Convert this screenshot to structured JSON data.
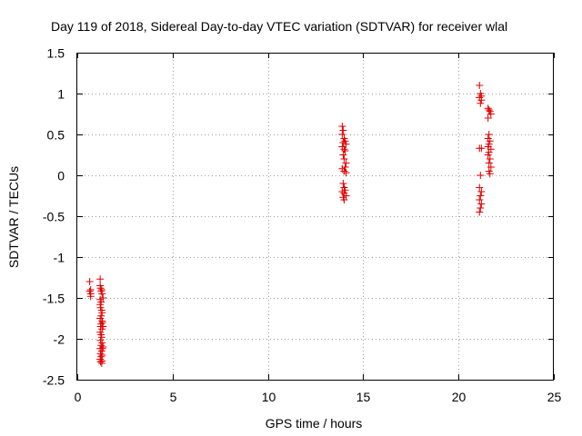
{
  "chart_data": {
    "type": "scatter",
    "title": "Day 119 of 2018, Sidereal Day-to-day VTEC variation (SDTVAR) for receiver wlal",
    "xlabel": "GPS time / hours",
    "ylabel": "SDTVAR / TECUs",
    "xlim": [
      0,
      25
    ],
    "ylim": [
      -2.5,
      1.5
    ],
    "xticks": [
      0,
      5,
      10,
      15,
      20,
      25
    ],
    "xtick_labels": [
      "0",
      "5",
      "10",
      "15",
      "20",
      "25"
    ],
    "yticks": [
      -2.5,
      -2,
      -1.5,
      -1,
      -0.5,
      0,
      0.5,
      1,
      1.5
    ],
    "ytick_labels": [
      "-2.5",
      "-2",
      "-1.5",
      "-1",
      "-0.5",
      "0",
      "0.5",
      "1",
      "1.5"
    ],
    "grid": true,
    "marker": "+",
    "color": "#e00000",
    "series": [
      {
        "name": "SDTVAR",
        "points": [
          [
            0.65,
            -1.3
          ],
          [
            0.65,
            -1.42
          ],
          [
            0.7,
            -1.45
          ],
          [
            0.7,
            -1.48
          ],
          [
            0.7,
            -1.4
          ],
          [
            1.2,
            -1.27
          ],
          [
            1.2,
            -1.35
          ],
          [
            1.22,
            -1.38
          ],
          [
            1.25,
            -1.42
          ],
          [
            1.28,
            -1.4
          ],
          [
            1.3,
            -1.45
          ],
          [
            1.2,
            -1.52
          ],
          [
            1.25,
            -1.55
          ],
          [
            1.2,
            -1.58
          ],
          [
            1.22,
            -1.62
          ],
          [
            1.28,
            -1.65
          ],
          [
            1.3,
            -1.68
          ],
          [
            1.25,
            -1.72
          ],
          [
            1.2,
            -1.75
          ],
          [
            1.3,
            -1.78
          ],
          [
            1.32,
            -1.8
          ],
          [
            1.25,
            -1.82
          ],
          [
            1.22,
            -1.85
          ],
          [
            1.3,
            -1.88
          ],
          [
            1.2,
            -1.92
          ],
          [
            1.25,
            -1.95
          ],
          [
            1.28,
            -1.98
          ],
          [
            1.22,
            -2.02
          ],
          [
            1.3,
            -2.05
          ],
          [
            1.25,
            -2.08
          ],
          [
            1.2,
            -2.12
          ],
          [
            1.32,
            -2.12
          ],
          [
            1.28,
            -2.15
          ],
          [
            1.22,
            -2.18
          ],
          [
            1.3,
            -2.2
          ],
          [
            1.25,
            -2.22
          ],
          [
            1.2,
            -2.25
          ],
          [
            1.3,
            -2.27
          ],
          [
            1.28,
            -2.3
          ],
          [
            1.22,
            -2.28
          ],
          [
            1.35,
            -1.5
          ],
          [
            1.35,
            -1.85
          ],
          [
            1.35,
            -2.1
          ],
          [
            13.9,
            0.6
          ],
          [
            13.95,
            0.55
          ],
          [
            13.9,
            0.5
          ],
          [
            14.0,
            0.45
          ],
          [
            14.05,
            0.42
          ],
          [
            13.95,
            0.4
          ],
          [
            14.1,
            0.38
          ],
          [
            13.9,
            0.35
          ],
          [
            14.0,
            0.32
          ],
          [
            14.05,
            0.3
          ],
          [
            13.95,
            0.25
          ],
          [
            14.0,
            0.2
          ],
          [
            14.1,
            0.15
          ],
          [
            14.05,
            0.1
          ],
          [
            13.9,
            0.08
          ],
          [
            14.0,
            0.05
          ],
          [
            14.1,
            0.03
          ],
          [
            13.95,
            -0.1
          ],
          [
            14.0,
            -0.15
          ],
          [
            14.05,
            -0.18
          ],
          [
            13.9,
            -0.2
          ],
          [
            14.0,
            -0.22
          ],
          [
            14.1,
            -0.25
          ],
          [
            13.95,
            -0.27
          ],
          [
            14.0,
            -0.3
          ],
          [
            21.1,
            1.1
          ],
          [
            21.15,
            1.0
          ],
          [
            21.2,
            0.97
          ],
          [
            21.1,
            0.95
          ],
          [
            21.2,
            0.92
          ],
          [
            21.15,
            0.88
          ],
          [
            21.55,
            0.82
          ],
          [
            21.6,
            0.8
          ],
          [
            21.65,
            0.78
          ],
          [
            21.7,
            0.75
          ],
          [
            21.55,
            0.7
          ],
          [
            21.6,
            0.5
          ],
          [
            21.55,
            0.45
          ],
          [
            21.65,
            0.42
          ],
          [
            21.6,
            0.38
          ],
          [
            21.55,
            0.35
          ],
          [
            21.7,
            0.32
          ],
          [
            21.6,
            0.28
          ],
          [
            21.55,
            0.25
          ],
          [
            21.65,
            0.2
          ],
          [
            21.6,
            0.15
          ],
          [
            21.7,
            0.1
          ],
          [
            21.6,
            0.05
          ],
          [
            21.65,
            0.02
          ],
          [
            21.1,
            0.33
          ],
          [
            21.2,
            0.33
          ],
          [
            21.15,
            0.0
          ],
          [
            21.1,
            -0.15
          ],
          [
            21.2,
            -0.2
          ],
          [
            21.15,
            -0.25
          ],
          [
            21.1,
            -0.3
          ],
          [
            21.2,
            -0.35
          ],
          [
            21.15,
            -0.4
          ],
          [
            21.1,
            -0.45
          ]
        ]
      }
    ]
  }
}
